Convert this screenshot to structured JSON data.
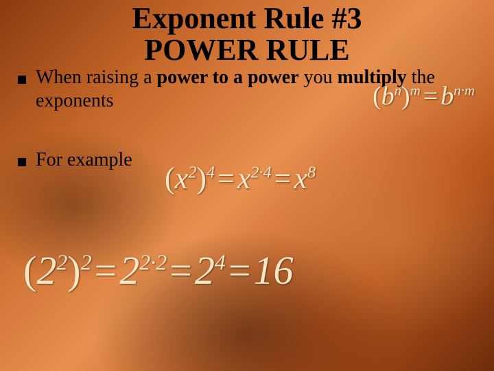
{
  "colors": {
    "background_gradient": [
      "#8b3a0f",
      "#c6682b",
      "#e89050",
      "#b8551e",
      "#6e2c0a"
    ],
    "formula_text": "#f7e7c5",
    "body_text": "#000000",
    "bullet_glyph": "#000000"
  },
  "typography": {
    "title_fontsize_pt": 33,
    "body_fontsize_pt": 21,
    "formula_general_fontsize_pt": 28,
    "formula_example1_fontsize_pt": 33,
    "formula_example2_fontsize_pt": 44,
    "font_family": "Times New Roman"
  },
  "title": {
    "line1": "Exponent Rule #3",
    "line2": "POWER RULE"
  },
  "bullets": [
    {
      "prefix": "When raising a ",
      "bold1": "power to a power",
      "mid": " you ",
      "bold2": "multiply",
      "suffix": " the exponents"
    },
    {
      "text": "For example"
    }
  ],
  "formulas": {
    "general": {
      "lhs_base": "b",
      "lhs_inner_exp": "n",
      "lhs_outer_exp": "m",
      "rhs_base": "b",
      "rhs_exp": "n·m"
    },
    "example1": {
      "base": "x",
      "inner_exp": "2",
      "outer_exp": "4",
      "step_exp": "2·4",
      "result_exp": "8"
    },
    "example2": {
      "base": "2",
      "inner_exp": "2",
      "outer_exp": "2",
      "step_exp": "2·2",
      "mid_exp": "4",
      "result": "16"
    }
  }
}
